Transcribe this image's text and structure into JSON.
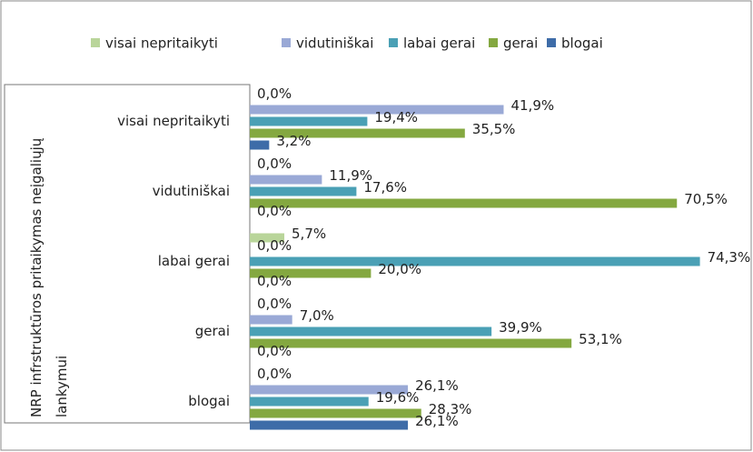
{
  "chart_data": {
    "type": "bar",
    "orientation": "horizontal",
    "ylabel": "NRP infrstruktūros pritaikymas neįgaliųjų lankymui",
    "categories": [
      "visai nepritaikyti",
      "vidutiniškai",
      "labai gerai",
      "gerai",
      "blogai"
    ],
    "legend": "top",
    "series": [
      {
        "name": "visai nepritaikyti",
        "color": "#b9d59a",
        "values": [
          0.0,
          0.0,
          5.7,
          0.0,
          0.0
        ],
        "value_labels": [
          "0,0%",
          "0,0%",
          "5,7%",
          "0,0%",
          "0,0%"
        ]
      },
      {
        "name": "vidutiniškai",
        "color": "#9aa9d6",
        "values": [
          41.9,
          11.9,
          0.0,
          7.0,
          26.1
        ],
        "value_labels": [
          "41,9%",
          "11,9%",
          "0,0%",
          "7,0%",
          "26,1%"
        ]
      },
      {
        "name": "labai gerai",
        "color": "#4aa0b5",
        "values": [
          19.4,
          17.6,
          74.3,
          39.9,
          19.6
        ],
        "value_labels": [
          "19,4%",
          "17,6%",
          "74,3%",
          "39,9%",
          "19,6%"
        ]
      },
      {
        "name": "gerai",
        "color": "#84a840",
        "values": [
          35.5,
          70.5,
          20.0,
          53.1,
          28.3
        ],
        "value_labels": [
          "35,5%",
          "70,5%",
          "20,0%",
          "53,1%",
          "28,3%"
        ]
      },
      {
        "name": "blogai",
        "color": "#3e6ca8",
        "values": [
          3.2,
          0.0,
          0.0,
          0.0,
          26.1
        ],
        "value_labels": [
          "3,2%",
          "0,0%",
          "0,0%",
          "0,0%",
          "26,1%"
        ]
      }
    ]
  }
}
